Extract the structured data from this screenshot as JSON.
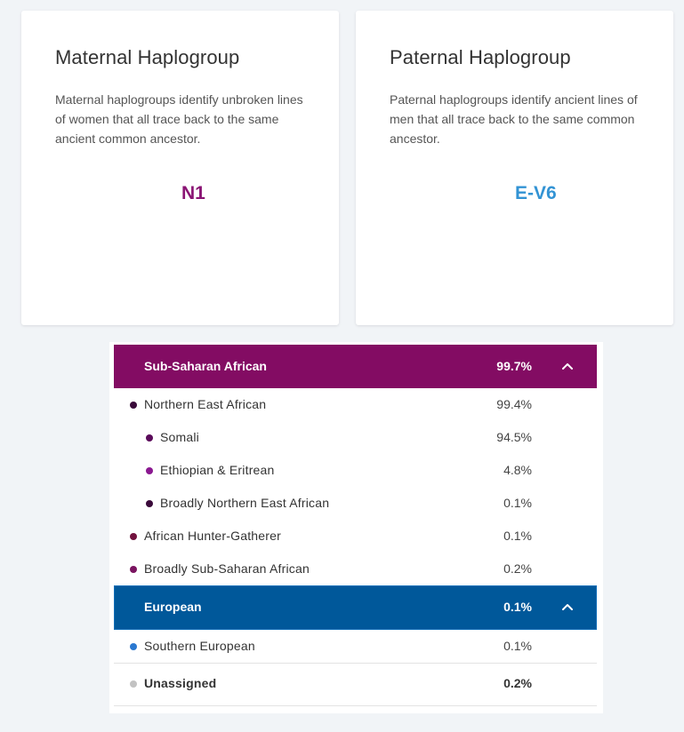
{
  "maternal": {
    "title": "Maternal Haplogroup",
    "description": "Maternal haplogroups identify unbroken lines of women that all trace back to the same ancient common ancestor.",
    "value": "N1",
    "value_color": "#8a1474"
  },
  "paternal": {
    "title": "Paternal Haplogroup",
    "description": "Paternal haplogroups identify ancient lines of men that all trace back to the same common ancestor.",
    "value": "E-V6",
    "value_color": "#3293d4"
  },
  "ancestry": {
    "sub_saharan": {
      "label": "Sub-Saharan African",
      "percent": "99.7%",
      "color": "#830c63",
      "toggle_icon": "chevron-up-icon",
      "rows": [
        {
          "label": "Northern East African",
          "percent": "99.4%",
          "dot_color": "#3a0a3a"
        },
        {
          "label": "Somali",
          "percent": "94.5%",
          "dot_color": "#5a0a5a"
        },
        {
          "label": "Ethiopian & Eritrean",
          "percent": "4.8%",
          "dot_color": "#8a1890"
        },
        {
          "label": "Broadly Northern East African",
          "percent": "0.1%",
          "dot_color": "#3a0a3a"
        },
        {
          "label": "African Hunter-Gatherer",
          "percent": "0.1%",
          "dot_color": "#72123e"
        },
        {
          "label": "Broadly Sub-Saharan African",
          "percent": "0.2%",
          "dot_color": "#7a1460"
        }
      ]
    },
    "european": {
      "label": "European",
      "percent": "0.1%",
      "color": "#00589a",
      "toggle_icon": "chevron-up-icon",
      "rows": [
        {
          "label": "Southern European",
          "percent": "0.1%",
          "dot_color": "#2a78d0"
        }
      ]
    },
    "unassigned": {
      "label": "Unassigned",
      "percent": "0.2%",
      "dot_color": "#c2c2c2"
    }
  }
}
